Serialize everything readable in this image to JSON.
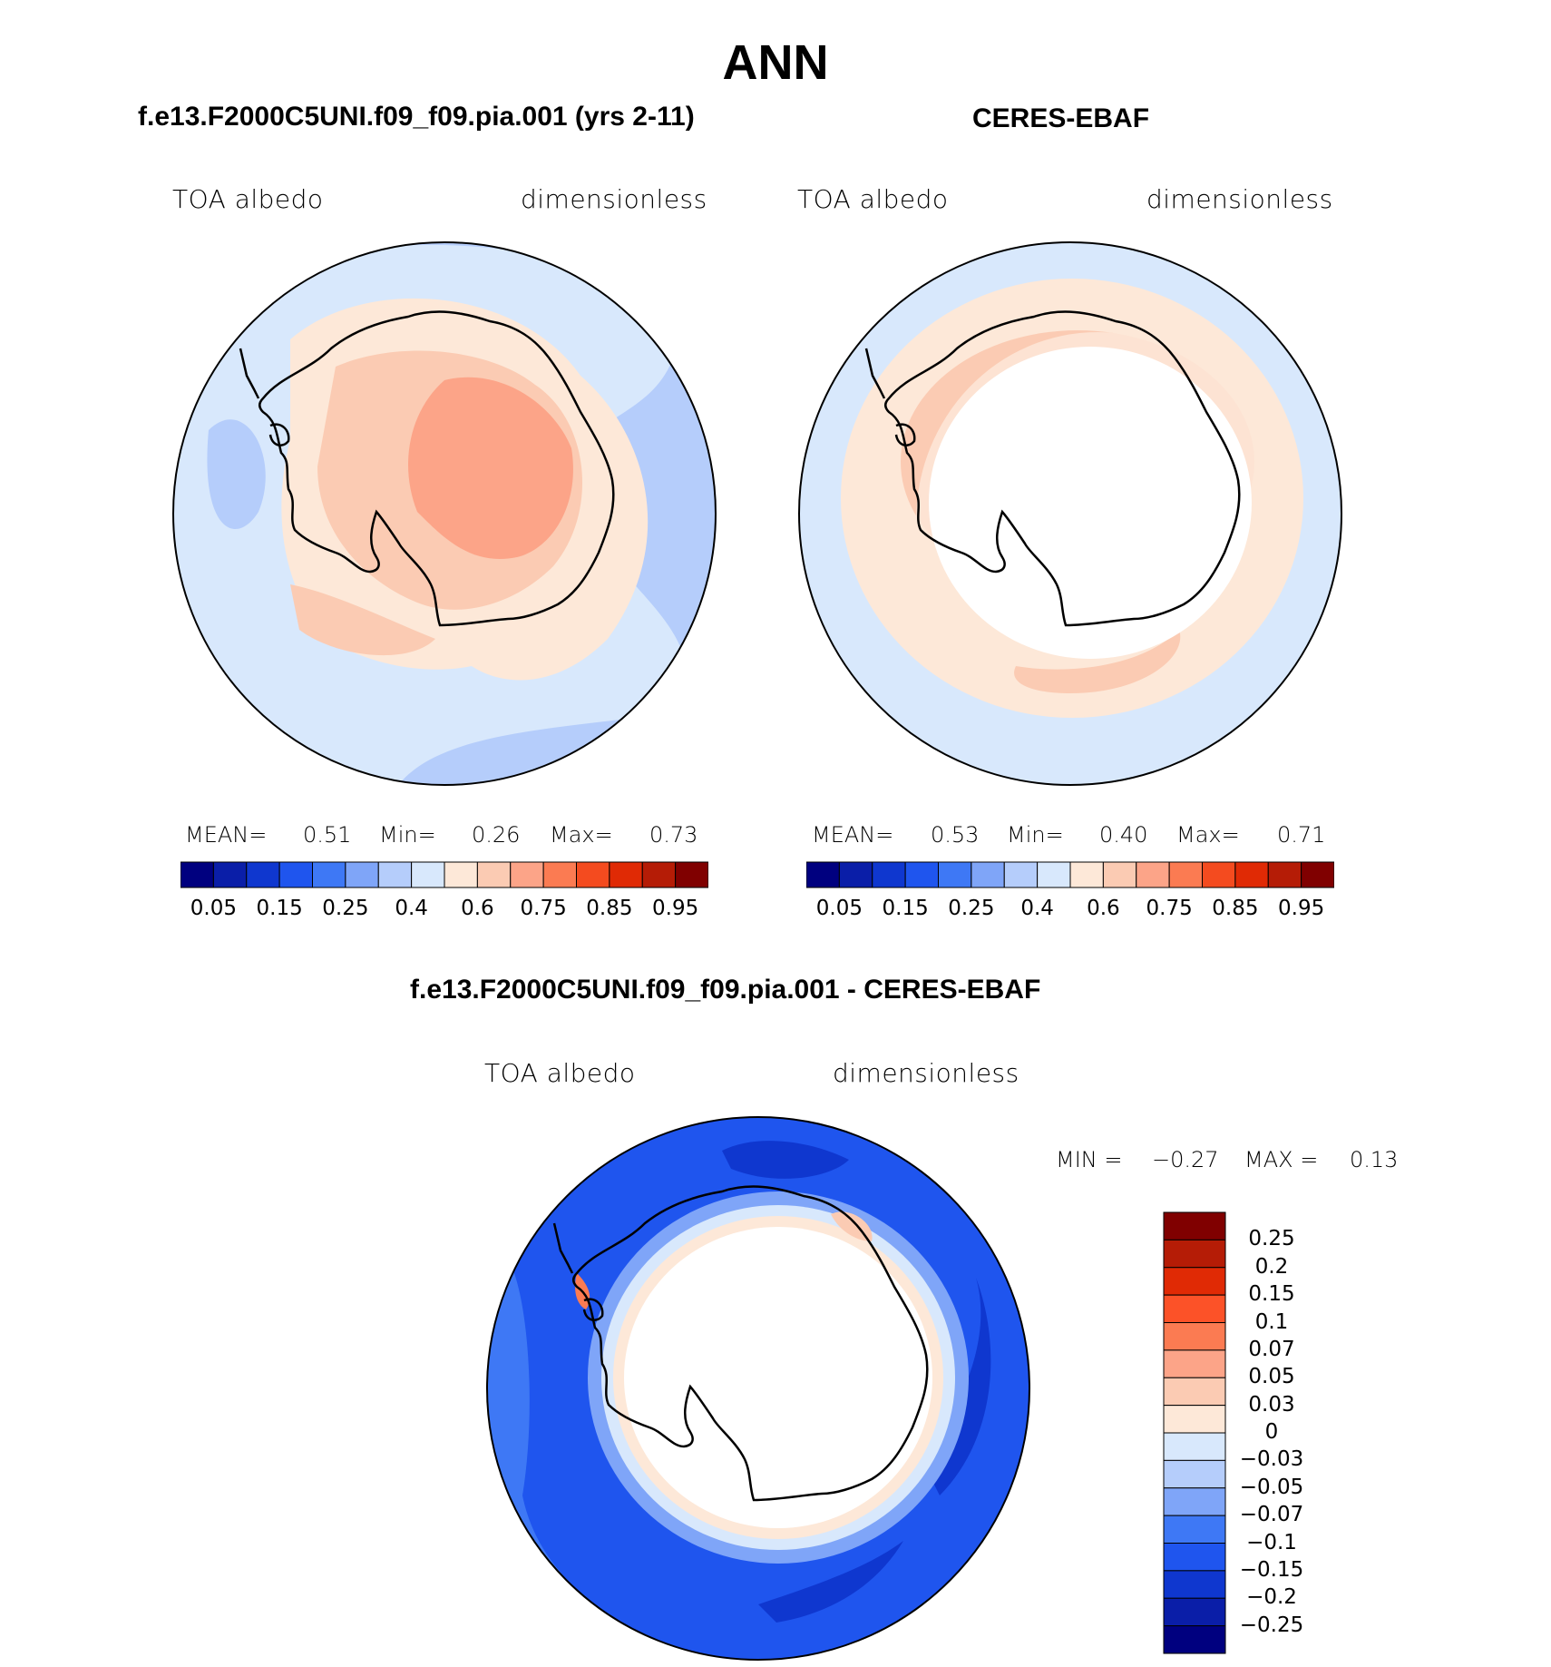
{
  "page_title": "ANN",
  "panels": [
    {
      "id": "model",
      "title": "f.e13.F2000C5UNI.f09_f09.pia.001 (yrs 2-11)",
      "field": "TOA albedo",
      "units": "dimensionless",
      "stats": {
        "mean_label": "MEAN=",
        "mean": "0.51",
        "min_label": "Min=",
        "min": "0.26",
        "max_label": "Max=",
        "max": "0.73"
      }
    },
    {
      "id": "obs",
      "title": "CERES-EBAF",
      "field": "TOA albedo",
      "units": "dimensionless",
      "stats": {
        "mean_label": "MEAN=",
        "mean": "0.53",
        "min_label": "Min=",
        "min": "0.40",
        "max_label": "Max=",
        "max": "0.71"
      }
    },
    {
      "id": "diff",
      "title": "f.e13.F2000C5UNI.f09_f09.pia.001 - CERES-EBAF",
      "field": "TOA albedo",
      "units": "dimensionless",
      "stats": {
        "min_label": "MIN =",
        "min": "−0.27",
        "max_label": "MAX =",
        "max": "0.13"
      }
    }
  ],
  "colorbar_abs": {
    "colors": [
      "#00007f",
      "#0a1ea8",
      "#0f37cf",
      "#1f55ee",
      "#3e78f5",
      "#7fa5f8",
      "#b5cdfb",
      "#d8e8fc",
      "#fde8d8",
      "#fbcbb3",
      "#fca488",
      "#fb7b52",
      "#f44b1f",
      "#e02a05",
      "#b51c06",
      "#800000"
    ],
    "labels": [
      "0.05",
      "0.15",
      "0.25",
      "0.4",
      "0.6",
      "0.75",
      "0.85",
      "0.95"
    ]
  },
  "colorbar_diff": {
    "colors": [
      "#800000",
      "#b51c06",
      "#e02a05",
      "#fc5228",
      "#fb7b52",
      "#fca488",
      "#fbcbb3",
      "#fde8d8",
      "#d8e8fc",
      "#b5cdfb",
      "#7fa5f8",
      "#3e78f5",
      "#1f55ee",
      "#0f37cf",
      "#0a1ea8",
      "#00007f"
    ],
    "labels": [
      "0.25",
      "0.2",
      "0.15",
      "0.1",
      "0.07",
      "0.05",
      "0.03",
      "0",
      "−0.03",
      "−0.05",
      "−0.07",
      "−0.1",
      "−0.15",
      "−0.2",
      "−0.25"
    ]
  }
}
